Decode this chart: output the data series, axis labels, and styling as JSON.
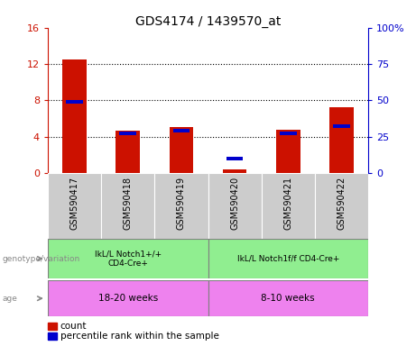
{
  "title": "GDS4174 / 1439570_at",
  "samples": [
    "GSM590417",
    "GSM590418",
    "GSM590419",
    "GSM590420",
    "GSM590421",
    "GSM590422"
  ],
  "count_values": [
    12.5,
    4.7,
    5.1,
    0.35,
    4.8,
    7.2
  ],
  "percentile_values": [
    49,
    27,
    29,
    10,
    27,
    32
  ],
  "left_ylim": [
    0,
    16
  ],
  "right_ylim": [
    0,
    100
  ],
  "left_yticks": [
    0,
    4,
    8,
    12,
    16
  ],
  "right_yticks": [
    0,
    25,
    50,
    75,
    100
  ],
  "left_ytick_labels": [
    "0",
    "4",
    "8",
    "12",
    "16"
  ],
  "right_ytick_labels": [
    "0",
    "25",
    "50",
    "75",
    "100%"
  ],
  "count_color": "#cc1100",
  "percentile_color": "#0000cc",
  "bar_width": 0.45,
  "genotype_labels": [
    "IkL/L Notch1+/+\nCD4-Cre+",
    "IkL/L Notch1f/f CD4-Cre+"
  ],
  "genotype_color": "#90ee90",
  "age_labels": [
    "18-20 weeks",
    "8-10 weeks"
  ],
  "age_color": "#ee82ee",
  "tick_color_left": "#cc1100",
  "tick_color_right": "#0000cc",
  "background_plot": "#ffffff",
  "background_xtick": "#cccccc",
  "label_color": "#888888"
}
